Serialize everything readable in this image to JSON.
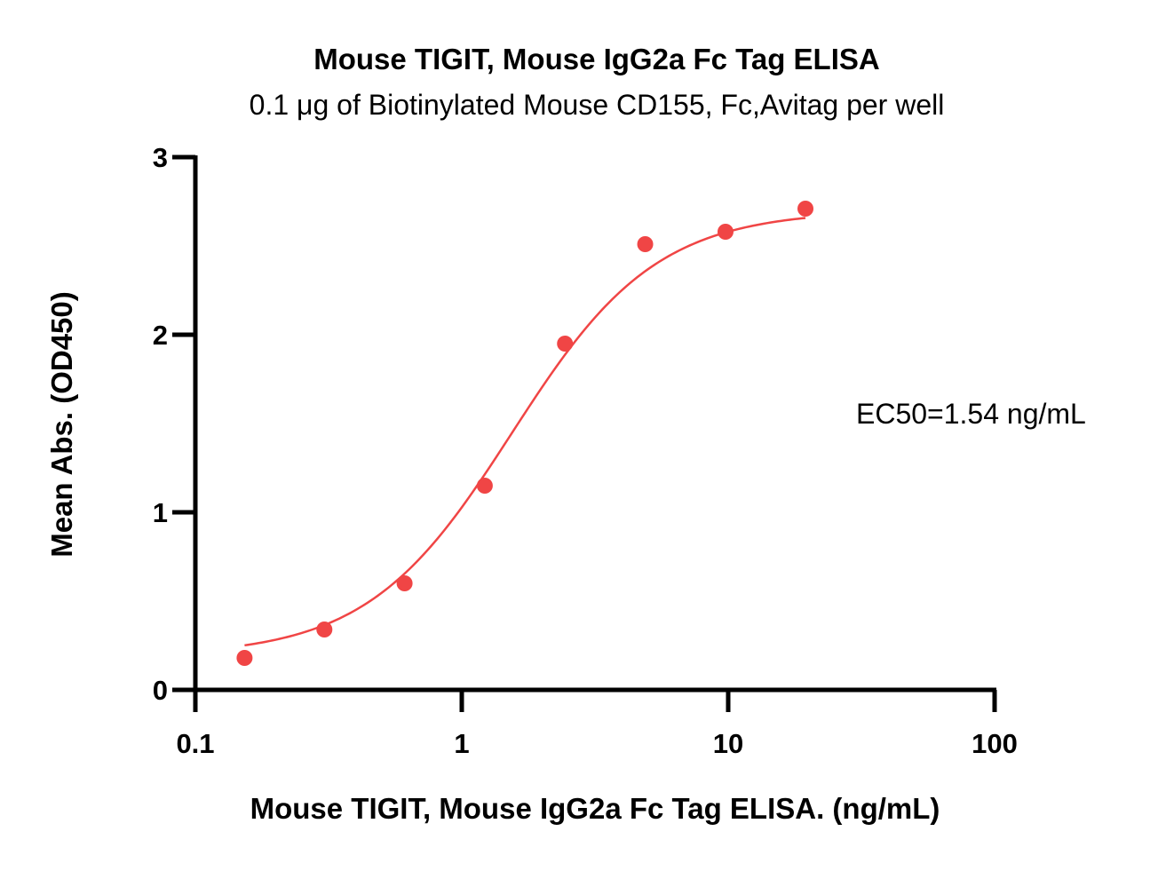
{
  "chart_data": {
    "type": "scatter",
    "title": "Mouse TIGIT, Mouse IgG2a Fc Tag ELISA",
    "subtitle": "0.1 μg of Biotinylated Mouse CD155, Fc,Avitag per well",
    "xlabel": "Mouse TIGIT, Mouse IgG2a Fc Tag ELISA. (ng/mL)",
    "ylabel": "Mean Abs. (OD450)",
    "x_scale": "log",
    "xlim": [
      0.1,
      100
    ],
    "ylim": [
      0,
      3
    ],
    "x_ticks": [
      0.1,
      1,
      10,
      100
    ],
    "x_tick_labels": [
      "0.1",
      "1",
      "10",
      "100"
    ],
    "y_ticks": [
      0,
      1,
      2,
      3
    ],
    "y_tick_labels": [
      "0",
      "1",
      "2",
      "3"
    ],
    "grid": false,
    "color": "#f04545",
    "series": [
      {
        "x": [
          0.153,
          0.305,
          0.61,
          1.22,
          2.44,
          4.88,
          9.77,
          19.5
        ],
        "y": [
          0.18,
          0.34,
          0.6,
          1.15,
          1.95,
          2.51,
          2.58,
          2.71
        ]
      }
    ],
    "fit": {
      "model": "4PL",
      "bottom": 0.19,
      "top": 2.7,
      "ec50": 1.54,
      "hill": 1.6,
      "x_range": [
        0.153,
        19.5
      ]
    },
    "annotation": "EC50=1.54 ng/mL"
  }
}
